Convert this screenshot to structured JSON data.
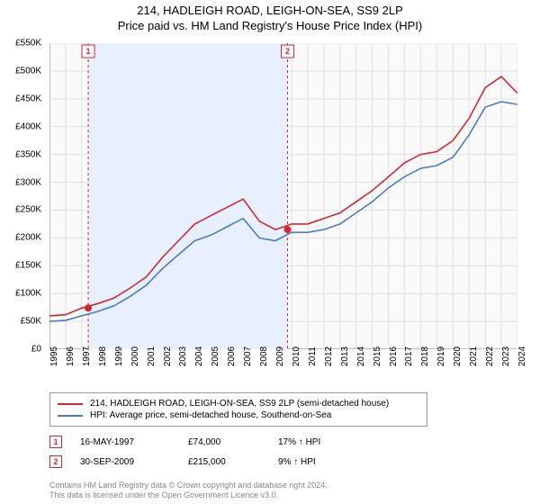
{
  "title": "214, HADLEIGH ROAD, LEIGH-ON-SEA, SS9 2LP",
  "subtitle": "Price paid vs. HM Land Registry's House Price Index (HPI)",
  "chart": {
    "type": "line",
    "background_color": "#fafafa",
    "grid_color": "#e0e0e0",
    "ylim": [
      0,
      550000
    ],
    "ytick_step": 50000,
    "ytick_labels": [
      "£0",
      "£50K",
      "£100K",
      "£150K",
      "£200K",
      "£250K",
      "£300K",
      "£350K",
      "£400K",
      "£450K",
      "£500K",
      "£550K"
    ],
    "xlim": [
      1995,
      2024
    ],
    "xtick_step": 1,
    "xtick_labels": [
      "1995",
      "1996",
      "1997",
      "1998",
      "1999",
      "2000",
      "2001",
      "2002",
      "2003",
      "2004",
      "2005",
      "2006",
      "2007",
      "2008",
      "2009",
      "2010",
      "2011",
      "2012",
      "2013",
      "2014",
      "2015",
      "2016",
      "2017",
      "2018",
      "2019",
      "2020",
      "2021",
      "2022",
      "2023",
      "2024"
    ],
    "series": [
      {
        "name": "property",
        "label": "214, HADLEIGH ROAD, LEIGH-ON-SEA, SS9 2LP (semi-detached house)",
        "color": "#d4272d",
        "x": [
          1995,
          1996,
          1997,
          1998,
          1999,
          2000,
          2001,
          2002,
          2003,
          2004,
          2005,
          2006,
          2007,
          2008,
          2009,
          2010,
          2011,
          2012,
          2013,
          2014,
          2015,
          2016,
          2017,
          2018,
          2019,
          2020,
          2021,
          2022,
          2023,
          2024
        ],
        "y": [
          60000,
          62000,
          74000,
          82000,
          92000,
          110000,
          130000,
          165000,
          195000,
          225000,
          240000,
          255000,
          270000,
          230000,
          215000,
          225000,
          225000,
          235000,
          245000,
          265000,
          285000,
          310000,
          335000,
          350000,
          355000,
          375000,
          415000,
          470000,
          490000,
          460000
        ]
      },
      {
        "name": "hpi",
        "label": "HPI: Average price, semi-detached house, Southend-on-Sea",
        "color": "#4a7bc8",
        "x": [
          1995,
          1996,
          1997,
          1998,
          1999,
          2000,
          2001,
          2002,
          2003,
          2004,
          2005,
          2006,
          2007,
          2008,
          2009,
          2010,
          2011,
          2012,
          2013,
          2014,
          2015,
          2016,
          2017,
          2018,
          2019,
          2020,
          2021,
          2022,
          2023,
          2024
        ],
        "y": [
          50000,
          52000,
          60000,
          68000,
          78000,
          95000,
          115000,
          145000,
          170000,
          195000,
          205000,
          220000,
          235000,
          200000,
          195000,
          210000,
          210000,
          215000,
          225000,
          245000,
          265000,
          290000,
          310000,
          325000,
          330000,
          345000,
          385000,
          435000,
          445000,
          440000
        ]
      }
    ],
    "transactions": [
      {
        "n": "1",
        "date": "16-MAY-1997",
        "price": "£74,000",
        "delta": "17% ↑ HPI",
        "year": 1997.4,
        "value": 74000,
        "color": "#d4272d"
      },
      {
        "n": "2",
        "date": "30-SEP-2009",
        "price": "£215,000",
        "delta": "9% ↑ HPI",
        "year": 2009.75,
        "value": 215000,
        "color": "#d4272d"
      }
    ],
    "band_color": "#e8f0ff",
    "label_fontsize": 10
  },
  "footer": {
    "line1": "Contains HM Land Registry data © Crown copyright and database right 2024.",
    "line2": "This data is licensed under the Open Government Licence v3.0."
  }
}
